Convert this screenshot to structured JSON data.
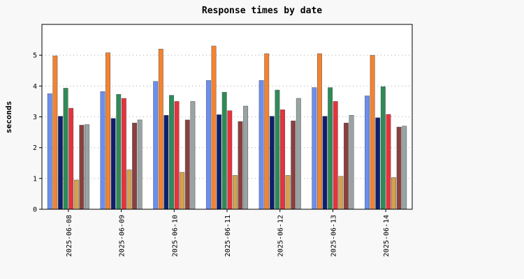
{
  "chart_data": {
    "type": "bar",
    "title": "Response times by date",
    "xlabel": "",
    "ylabel": "seconds",
    "ylim": [
      0,
      6
    ],
    "yticks": [
      0,
      1,
      2,
      3,
      4,
      5
    ],
    "grid": "horizontal-dotted",
    "categories": [
      "2025-06-08",
      "2025-06-09",
      "2025-06-10",
      "2025-06-11",
      "2025-06-12",
      "2025-06-13",
      "2025-06-14"
    ],
    "series": [
      {
        "color": "#6b8ff0",
        "values": [
          3.75,
          3.82,
          4.15,
          4.18,
          4.18,
          3.95,
          3.68
        ]
      },
      {
        "color": "#f58230",
        "values": [
          4.98,
          5.08,
          5.2,
          5.3,
          5.05,
          5.05,
          5.0
        ]
      },
      {
        "color": "#0e1f6e",
        "values": [
          3.02,
          2.95,
          3.05,
          3.07,
          3.02,
          3.02,
          2.97
        ]
      },
      {
        "color": "#2e8b57",
        "values": [
          3.93,
          3.73,
          3.7,
          3.8,
          3.87,
          3.95,
          3.98
        ]
      },
      {
        "color": "#e8323c",
        "values": [
          3.28,
          3.6,
          3.5,
          3.2,
          3.23,
          3.5,
          3.08
        ]
      },
      {
        "color": "#d4a24e",
        "values": [
          0.95,
          1.28,
          1.2,
          1.1,
          1.1,
          1.07,
          1.03
        ]
      },
      {
        "color": "#8b4040",
        "values": [
          2.73,
          2.8,
          2.9,
          2.85,
          2.87,
          2.8,
          2.67
        ]
      },
      {
        "color": "#9aa3a3",
        "values": [
          2.75,
          2.9,
          3.5,
          3.35,
          3.6,
          3.05,
          2.7
        ]
      }
    ]
  }
}
